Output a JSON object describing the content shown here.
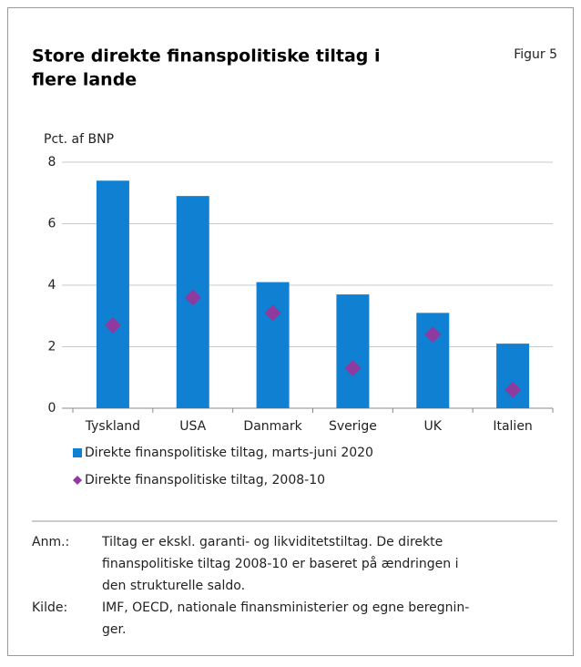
{
  "chart_data": {
    "type": "bar",
    "title": [
      "Store direkte finanspolitiske tiltag i",
      "flere lande"
    ],
    "figure_label": "Figur 5",
    "y_label": "Pct. af BNP",
    "categories": [
      "Tyskland",
      "USA",
      "Danmark",
      "Sverige",
      "UK",
      "Italien"
    ],
    "series": [
      {
        "name": "Direkte finanspolitiske tiltag, marts-juni 2020",
        "color": "#1080d2",
        "type": "bar",
        "values": [
          7.4,
          6.9,
          4.1,
          3.7,
          3.1,
          2.1
        ]
      },
      {
        "name": "Direkte finanspolitiske tiltag, 2008-10",
        "color": "#8e3a9e",
        "type": "diamond",
        "values": [
          2.7,
          3.6,
          3.1,
          1.3,
          2.4,
          0.6
        ]
      }
    ],
    "ylim": [
      0,
      8
    ],
    "yticks": [
      0,
      2,
      4,
      6,
      8
    ],
    "grid": true,
    "notes": [
      {
        "label": "Anm.:",
        "lines": [
          "Tiltag er ekskl. garanti- og likviditetstiltag. De direkte",
          "finanspolitiske tiltag 2008-10 er baseret på ændringen i",
          "den strukturelle saldo."
        ]
      },
      {
        "label": "Kilde:",
        "lines": [
          "IMF, OECD, nationale finansministerier og egne beregnin-",
          "ger."
        ]
      }
    ]
  }
}
